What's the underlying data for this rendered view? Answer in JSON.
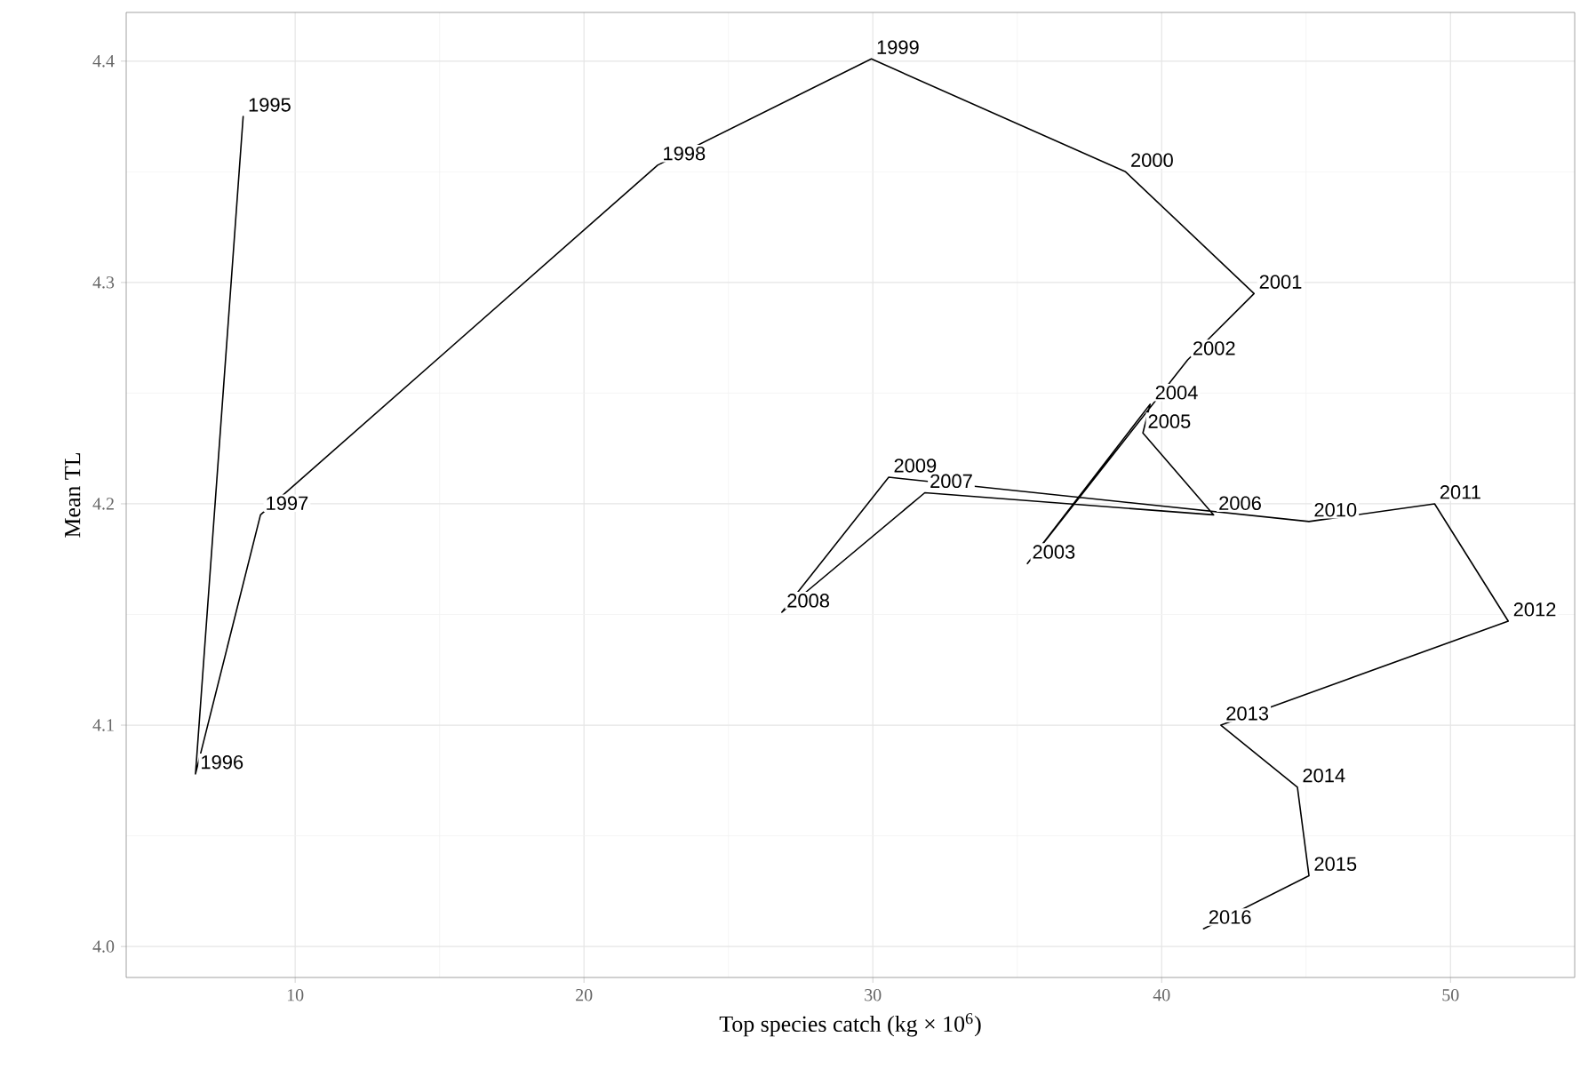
{
  "chart_data": {
    "type": "line",
    "xlabel": "Top species catch (kg × 10$^{6}$)",
    "ylabel": "Mean TL",
    "x": [
      8.2,
      6.55,
      8.8,
      22.55,
      29.95,
      38.75,
      43.2,
      40.9,
      35.35,
      39.6,
      39.35,
      41.8,
      31.8,
      26.85,
      30.55,
      45.1,
      49.45,
      52.0,
      42.05,
      44.7,
      45.1,
      41.45
    ],
    "series": [
      {
        "color": "#000000",
        "values": [
          4.375,
          4.078,
          4.195,
          4.353,
          4.401,
          4.35,
          4.295,
          4.265,
          4.173,
          4.245,
          4.232,
          4.195,
          4.205,
          4.151,
          4.212,
          4.192,
          4.2,
          4.147,
          4.1,
          4.072,
          4.032,
          4.008
        ]
      }
    ],
    "annotations": [
      {
        "text": "1995",
        "x": 8.2,
        "y": 4.375
      },
      {
        "text": "1996",
        "x": 6.55,
        "y": 4.078
      },
      {
        "text": "1997",
        "x": 8.8,
        "y": 4.195
      },
      {
        "text": "1998",
        "x": 22.55,
        "y": 4.353
      },
      {
        "text": "1999",
        "x": 29.95,
        "y": 4.401
      },
      {
        "text": "2000",
        "x": 38.75,
        "y": 4.35
      },
      {
        "text": "2001",
        "x": 43.2,
        "y": 4.295
      },
      {
        "text": "2002",
        "x": 40.9,
        "y": 4.265
      },
      {
        "text": "2003",
        "x": 35.35,
        "y": 4.173
      },
      {
        "text": "2004",
        "x": 39.6,
        "y": 4.245
      },
      {
        "text": "2005",
        "x": 39.35,
        "y": 4.232
      },
      {
        "text": "2006",
        "x": 41.8,
        "y": 4.195
      },
      {
        "text": "2007",
        "x": 31.8,
        "y": 4.205
      },
      {
        "text": "2008",
        "x": 26.85,
        "y": 4.151
      },
      {
        "text": "2009",
        "x": 30.55,
        "y": 4.212
      },
      {
        "text": "2010",
        "x": 45.1,
        "y": 4.192
      },
      {
        "text": "2011",
        "x": 49.45,
        "y": 4.2
      },
      {
        "text": "2012",
        "x": 52.0,
        "y": 4.147
      },
      {
        "text": "2013",
        "x": 42.05,
        "y": 4.1
      },
      {
        "text": "2014",
        "x": 44.7,
        "y": 4.072
      },
      {
        "text": "2015",
        "x": 45.1,
        "y": 4.032
      },
      {
        "text": "2016",
        "x": 41.45,
        "y": 4.008
      }
    ],
    "xlim": [
      4.15,
      54.3
    ],
    "ylim": [
      3.986,
      4.422
    ],
    "xticks": [
      10,
      20,
      30,
      40,
      50
    ],
    "yticks": [
      {
        "value": 4.0,
        "label": "4.0"
      },
      {
        "value": 4.1,
        "label": "4.1"
      },
      {
        "value": 4.2,
        "label": "4.2"
      },
      {
        "value": 4.3,
        "label": "4.3"
      },
      {
        "value": 4.4,
        "label": "4.4"
      }
    ],
    "grid": true,
    "marker": "none",
    "line_style": "solid"
  }
}
